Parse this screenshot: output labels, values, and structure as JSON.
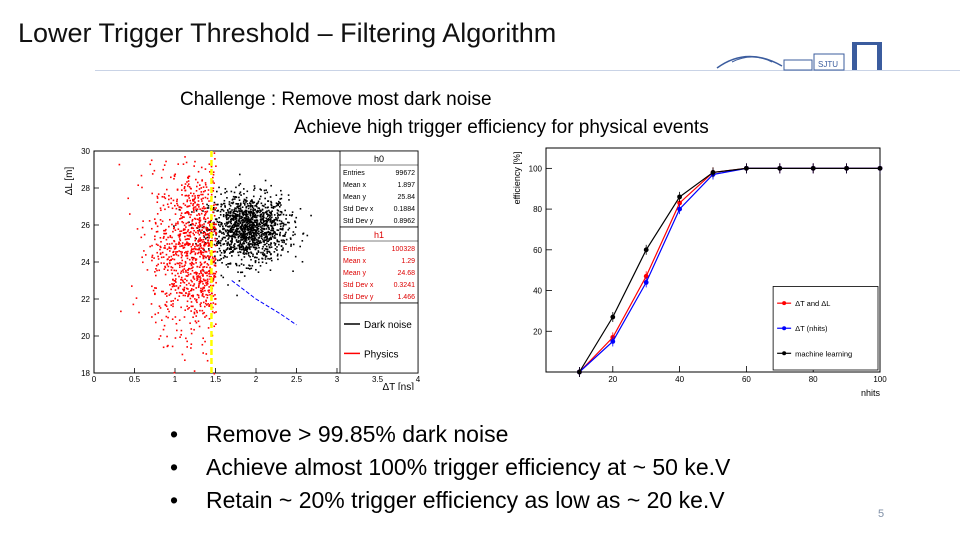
{
  "slide": {
    "title": "Lower Trigger Threshold – Filtering Algorithm",
    "challenge_line1": "Challenge : Remove most dark noise",
    "challenge_line2": "Achieve high trigger efficiency for physical events",
    "bullets": [
      "Remove > 99.85% dark noise",
      "Achieve almost 100% trigger efficiency at ~ 50 ke.V",
      "Retain ~ 20% trigger efficiency as low as ~ 20 ke.V"
    ],
    "bullet_symbol": "•",
    "page_number": "5",
    "logo_text": "SJTU",
    "colors": {
      "dark_noise": "#000000",
      "physics": "#ff0000",
      "cut_line": "#ffff00",
      "blue_curve": "#0000ff"
    }
  },
  "chart_data": [
    {
      "type": "scatter",
      "xlabel": "ΔT [ns]",
      "ylabel": "ΔL [m]",
      "xlim": [
        0,
        4
      ],
      "ylim": [
        18,
        30
      ],
      "x_ticks": [
        "0",
        "0.5",
        "1",
        "1.5",
        "2",
        "2.5",
        "3",
        "3.5",
        "4"
      ],
      "y_ticks": [
        "18",
        "20",
        "22",
        "24",
        "26",
        "28",
        "30"
      ],
      "cut_x": 1.45,
      "series": [
        {
          "name": "Dark noise",
          "color": "#000000",
          "center": [
            1.897,
            25.84
          ],
          "spread": [
            0.1884,
            0.8962
          ]
        },
        {
          "name": "Physics",
          "color": "#ff0000",
          "center": [
            1.29,
            24.68
          ],
          "spread": [
            0.3241,
            1.466
          ]
        }
      ],
      "cut_curve": {
        "color": "#0000ff",
        "x": [
          1.7,
          2.0,
          2.3,
          2.5
        ],
        "y": [
          23.0,
          22.0,
          21.2,
          20.6
        ]
      },
      "stat_boxes": [
        {
          "name": "h0",
          "rows": [
            [
              "Entries",
              "99672"
            ],
            [
              "Mean x",
              "1.897"
            ],
            [
              "Mean y",
              "25.84"
            ],
            [
              "Std Dev x",
              "0.1884"
            ],
            [
              "Std Dev y",
              "0.8962"
            ]
          ]
        },
        {
          "name": "h1",
          "rows": [
            [
              "Entries",
              "100328"
            ],
            [
              "Mean x",
              "1.29"
            ],
            [
              "Mean y",
              "24.68"
            ],
            [
              "Std Dev x",
              "0.3241"
            ],
            [
              "Std Dev y",
              "1.466"
            ]
          ]
        }
      ],
      "legend": [
        "Dark noise",
        "Physics"
      ],
      "legend_position": "right"
    },
    {
      "type": "line",
      "xlabel": "nhits",
      "ylabel": "efficiency [%]",
      "xlim": [
        0,
        100
      ],
      "ylim": [
        0,
        110
      ],
      "x_ticks": [
        20,
        40,
        60,
        80,
        100
      ],
      "y_ticks": [
        20,
        40,
        60,
        80,
        100
      ],
      "series": [
        {
          "name": "ΔT and ΔL",
          "color": "#ff0000",
          "x": [
            10,
            20,
            30,
            40,
            50,
            60,
            70,
            80,
            90,
            100
          ],
          "y": [
            0,
            17,
            47,
            83,
            98,
            100,
            100,
            100,
            100,
            100
          ]
        },
        {
          "name": "ΔT (nhits)",
          "color": "#0000ff",
          "x": [
            10,
            20,
            30,
            40,
            50,
            60,
            70,
            80,
            90,
            100
          ],
          "y": [
            0,
            15,
            44,
            80,
            97,
            100,
            100,
            100,
            100,
            100
          ]
        },
        {
          "name": "machine learning",
          "color": "#000000",
          "x": [
            10,
            20,
            30,
            40,
            50,
            60,
            70,
            80,
            90,
            100
          ],
          "y": [
            0,
            27,
            60,
            86,
            98,
            100,
            100,
            100,
            100,
            100
          ]
        }
      ],
      "legend_position": "bottom-right"
    }
  ]
}
